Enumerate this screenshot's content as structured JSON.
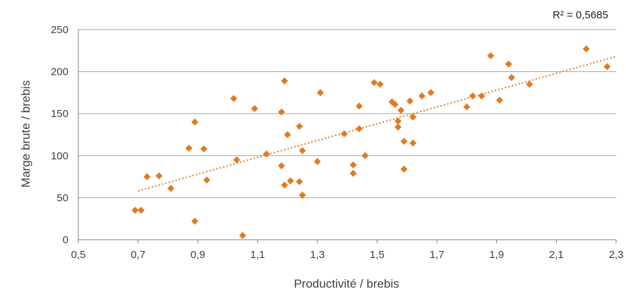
{
  "chart_data": {
    "type": "scatter",
    "xlabel": "Productivité / brebis",
    "ylabel": "Marge brute / brebis",
    "xlim": [
      0.5,
      2.3
    ],
    "ylim": [
      0,
      250
    ],
    "x_ticks": [
      "0,5",
      "0,7",
      "0,9",
      "1,1",
      "1,3",
      "1,5",
      "1,7",
      "1,9",
      "2,1",
      "2,3"
    ],
    "y_ticks": [
      "0",
      "50",
      "100",
      "150",
      "200",
      "250"
    ],
    "grid": "horizontal",
    "r2_label": "R² = 0,5685",
    "trendline": {
      "type": "linear",
      "from": [
        0.7,
        58
      ],
      "to": [
        2.3,
        218
      ],
      "style": "dotted"
    },
    "marker_color": "#e07b22",
    "grid_color": "#a6a6a6",
    "points": [
      [
        0.69,
        35
      ],
      [
        0.71,
        35
      ],
      [
        0.73,
        75
      ],
      [
        0.77,
        76
      ],
      [
        0.81,
        61
      ],
      [
        0.87,
        109
      ],
      [
        0.89,
        140
      ],
      [
        0.89,
        22
      ],
      [
        0.92,
        108
      ],
      [
        0.93,
        71
      ],
      [
        1.02,
        168
      ],
      [
        1.03,
        95
      ],
      [
        1.09,
        156
      ],
      [
        1.13,
        102
      ],
      [
        1.18,
        152
      ],
      [
        1.18,
        88
      ],
      [
        1.19,
        189
      ],
      [
        1.19,
        65
      ],
      [
        1.2,
        125
      ],
      [
        1.21,
        70
      ],
      [
        1.24,
        135
      ],
      [
        1.24,
        69
      ],
      [
        1.25,
        106
      ],
      [
        1.25,
        53
      ],
      [
        1.05,
        5
      ],
      [
        1.3,
        93
      ],
      [
        1.31,
        175
      ],
      [
        1.39,
        126
      ],
      [
        1.42,
        89
      ],
      [
        1.42,
        79
      ],
      [
        1.44,
        159
      ],
      [
        1.44,
        132
      ],
      [
        1.46,
        100
      ],
      [
        1.49,
        187
      ],
      [
        1.51,
        185
      ],
      [
        1.55,
        164
      ],
      [
        1.56,
        161
      ],
      [
        1.57,
        141
      ],
      [
        1.57,
        134
      ],
      [
        1.58,
        154
      ],
      [
        1.59,
        117
      ],
      [
        1.59,
        84
      ],
      [
        1.61,
        165
      ],
      [
        1.62,
        146
      ],
      [
        1.62,
        115
      ],
      [
        1.65,
        171
      ],
      [
        1.68,
        175
      ],
      [
        1.8,
        158
      ],
      [
        1.82,
        171
      ],
      [
        1.85,
        171
      ],
      [
        1.88,
        219
      ],
      [
        1.91,
        166
      ],
      [
        1.94,
        209
      ],
      [
        1.95,
        193
      ],
      [
        2.01,
        185
      ],
      [
        2.2,
        227
      ],
      [
        2.27,
        206
      ]
    ]
  }
}
